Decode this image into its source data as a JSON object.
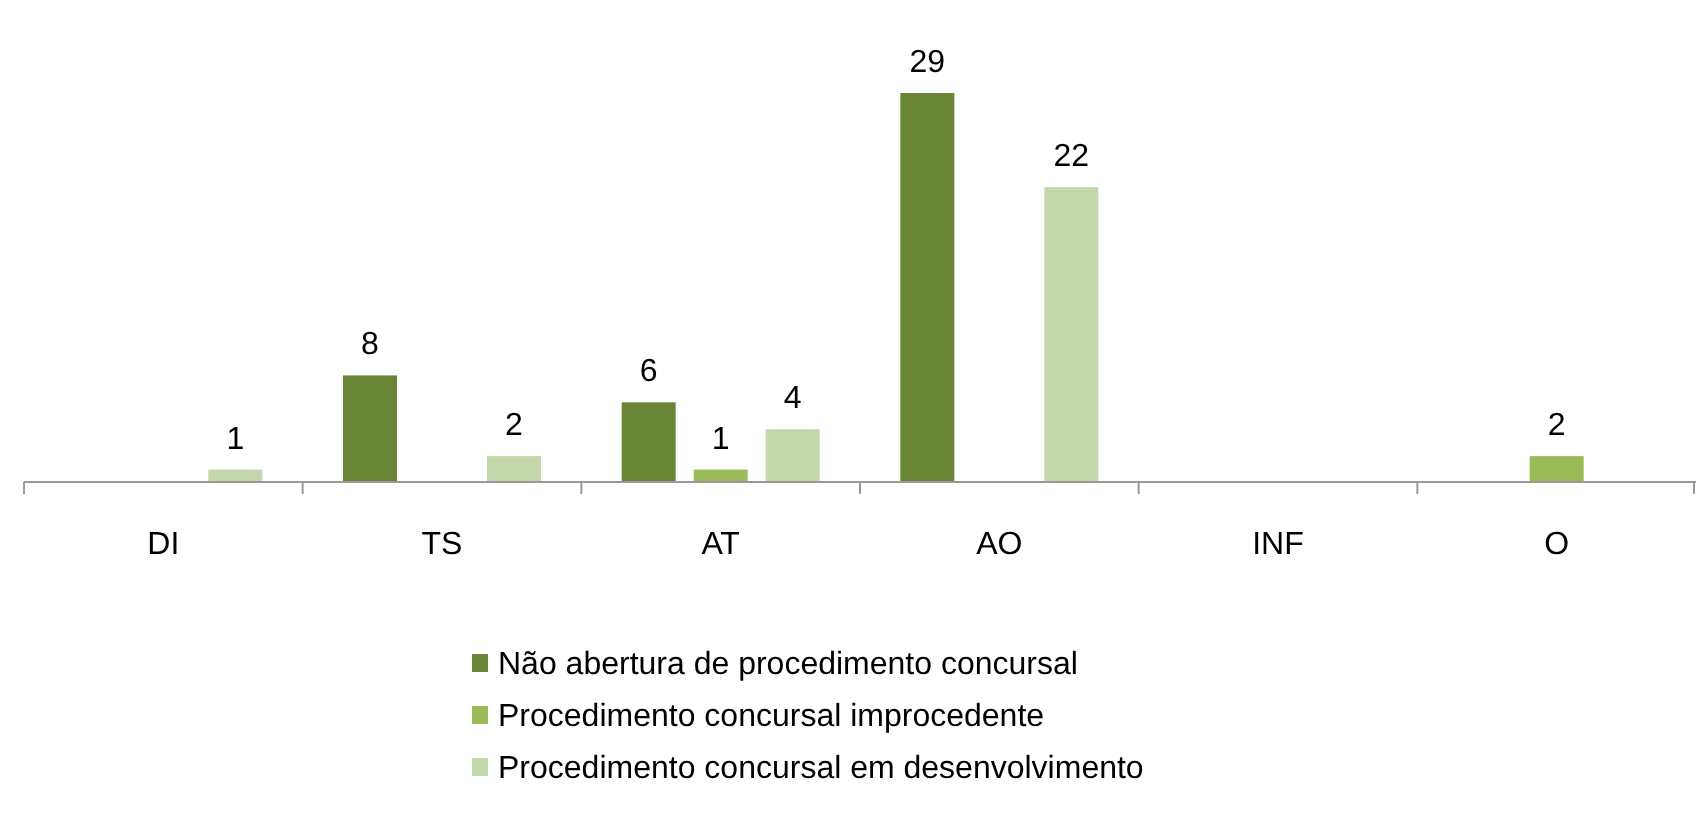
{
  "chart_data": {
    "type": "bar",
    "categories": [
      "DI",
      "TS",
      "AT",
      "AO",
      "INF",
      "O"
    ],
    "series": [
      {
        "name": "Não abertura de procedimento concursal",
        "color": "#6a8535",
        "values": [
          null,
          8,
          6,
          29,
          null,
          null
        ]
      },
      {
        "name": "Procedimento concursal improcedente",
        "color": "#9bbb59",
        "values": [
          null,
          null,
          1,
          null,
          null,
          2
        ]
      },
      {
        "name": "Procedimento concursal em desenvolvimento",
        "color": "#c4d7ab",
        "values": [
          1,
          2,
          4,
          22,
          null,
          null
        ]
      }
    ],
    "data_labels": true,
    "legend": "bottom"
  }
}
